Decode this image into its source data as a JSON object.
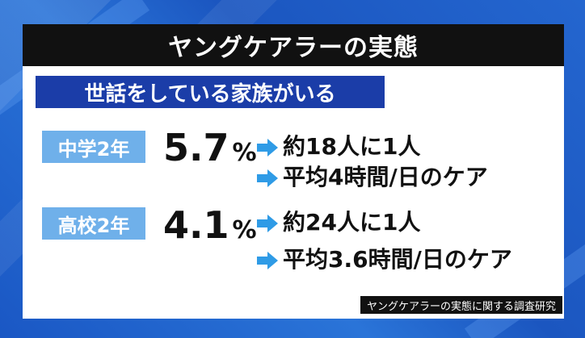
{
  "title": "ヤングケアラーの実態",
  "subtitle": "世話をしている家族がいる",
  "rows": [
    {
      "grade": "中学2年",
      "percent": "5.7",
      "unit": "%",
      "facts": [
        "約18人に1人",
        "平均4時間/日のケア"
      ]
    },
    {
      "grade": "高校2年",
      "percent": "4.1",
      "unit": "%",
      "facts": [
        "約24人に1人",
        "平均3.6時間/日のケア"
      ]
    }
  ],
  "source": "ヤングケアラーの実態に関する調査研究",
  "colors": {
    "background": "#1d4fb0",
    "title_bar": "#111111",
    "subtitle_bar": "#1b3da8",
    "grade_badge": "#6fb0ea",
    "arrow": "#2f9be6"
  },
  "icons": {
    "arrow": "right-arrow-icon"
  }
}
